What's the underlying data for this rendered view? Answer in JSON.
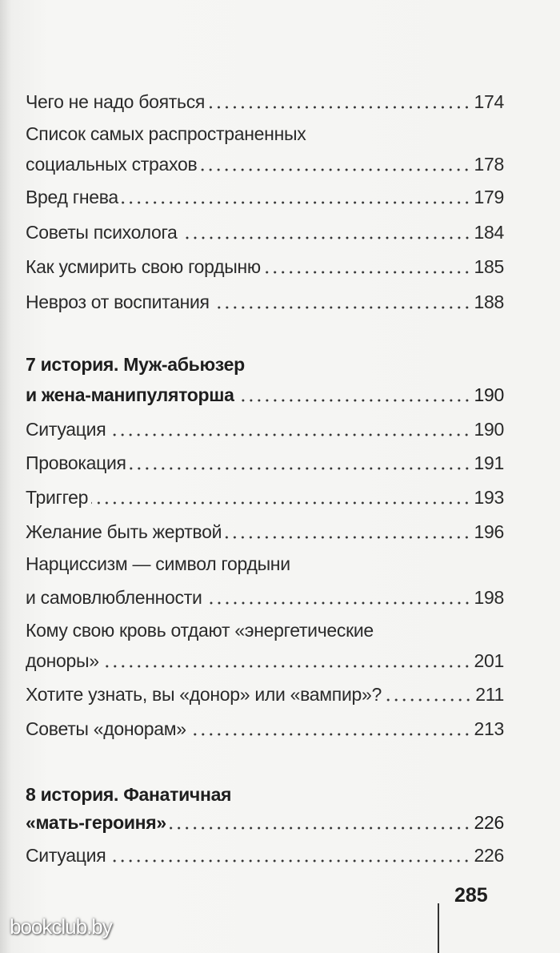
{
  "toc": [
    {
      "text": "Чего не надо бояться",
      "page": "174"
    },
    {
      "text": "Список самых распространенных"
    },
    {
      "text": "социальных страхов",
      "page": "178"
    },
    {
      "text": "Вред гнева",
      "page": "179"
    },
    {
      "text": "Советы психолога",
      "page": "184"
    },
    {
      "text": "Как усмирить свою гордыню",
      "page": "185"
    },
    {
      "text": "Невроз от воспитания",
      "page": "188"
    },
    {
      "text": "7 история. Муж-абьюзер"
    },
    {
      "text": "и жена-манипуляторша",
      "page": "190"
    },
    {
      "text": "Ситуация",
      "page": "190"
    },
    {
      "text": "Провокация",
      "page": "191"
    },
    {
      "text": "Триггер",
      "page": "193"
    },
    {
      "text": "Желание быть жертвой",
      "page": "196"
    },
    {
      "text": "Нарциссизм — символ гордыни"
    },
    {
      "text": "и самовлюбленности",
      "page": "198"
    },
    {
      "text": "Кому свою кровь отдают «энергетические"
    },
    {
      "text": "доноры»",
      "page": "201"
    },
    {
      "text": "Хотите узнать, вы «донор» или «вампир»?",
      "page": "211"
    },
    {
      "text": "Советы «донорам»",
      "page": "213"
    },
    {
      "text": "8 история. Фанатичная"
    },
    {
      "text": "«мать-героиня»",
      "page": "226"
    },
    {
      "text": "Ситуация",
      "page": "226"
    }
  ],
  "page_number": "285",
  "watermark": "bookclub.by"
}
